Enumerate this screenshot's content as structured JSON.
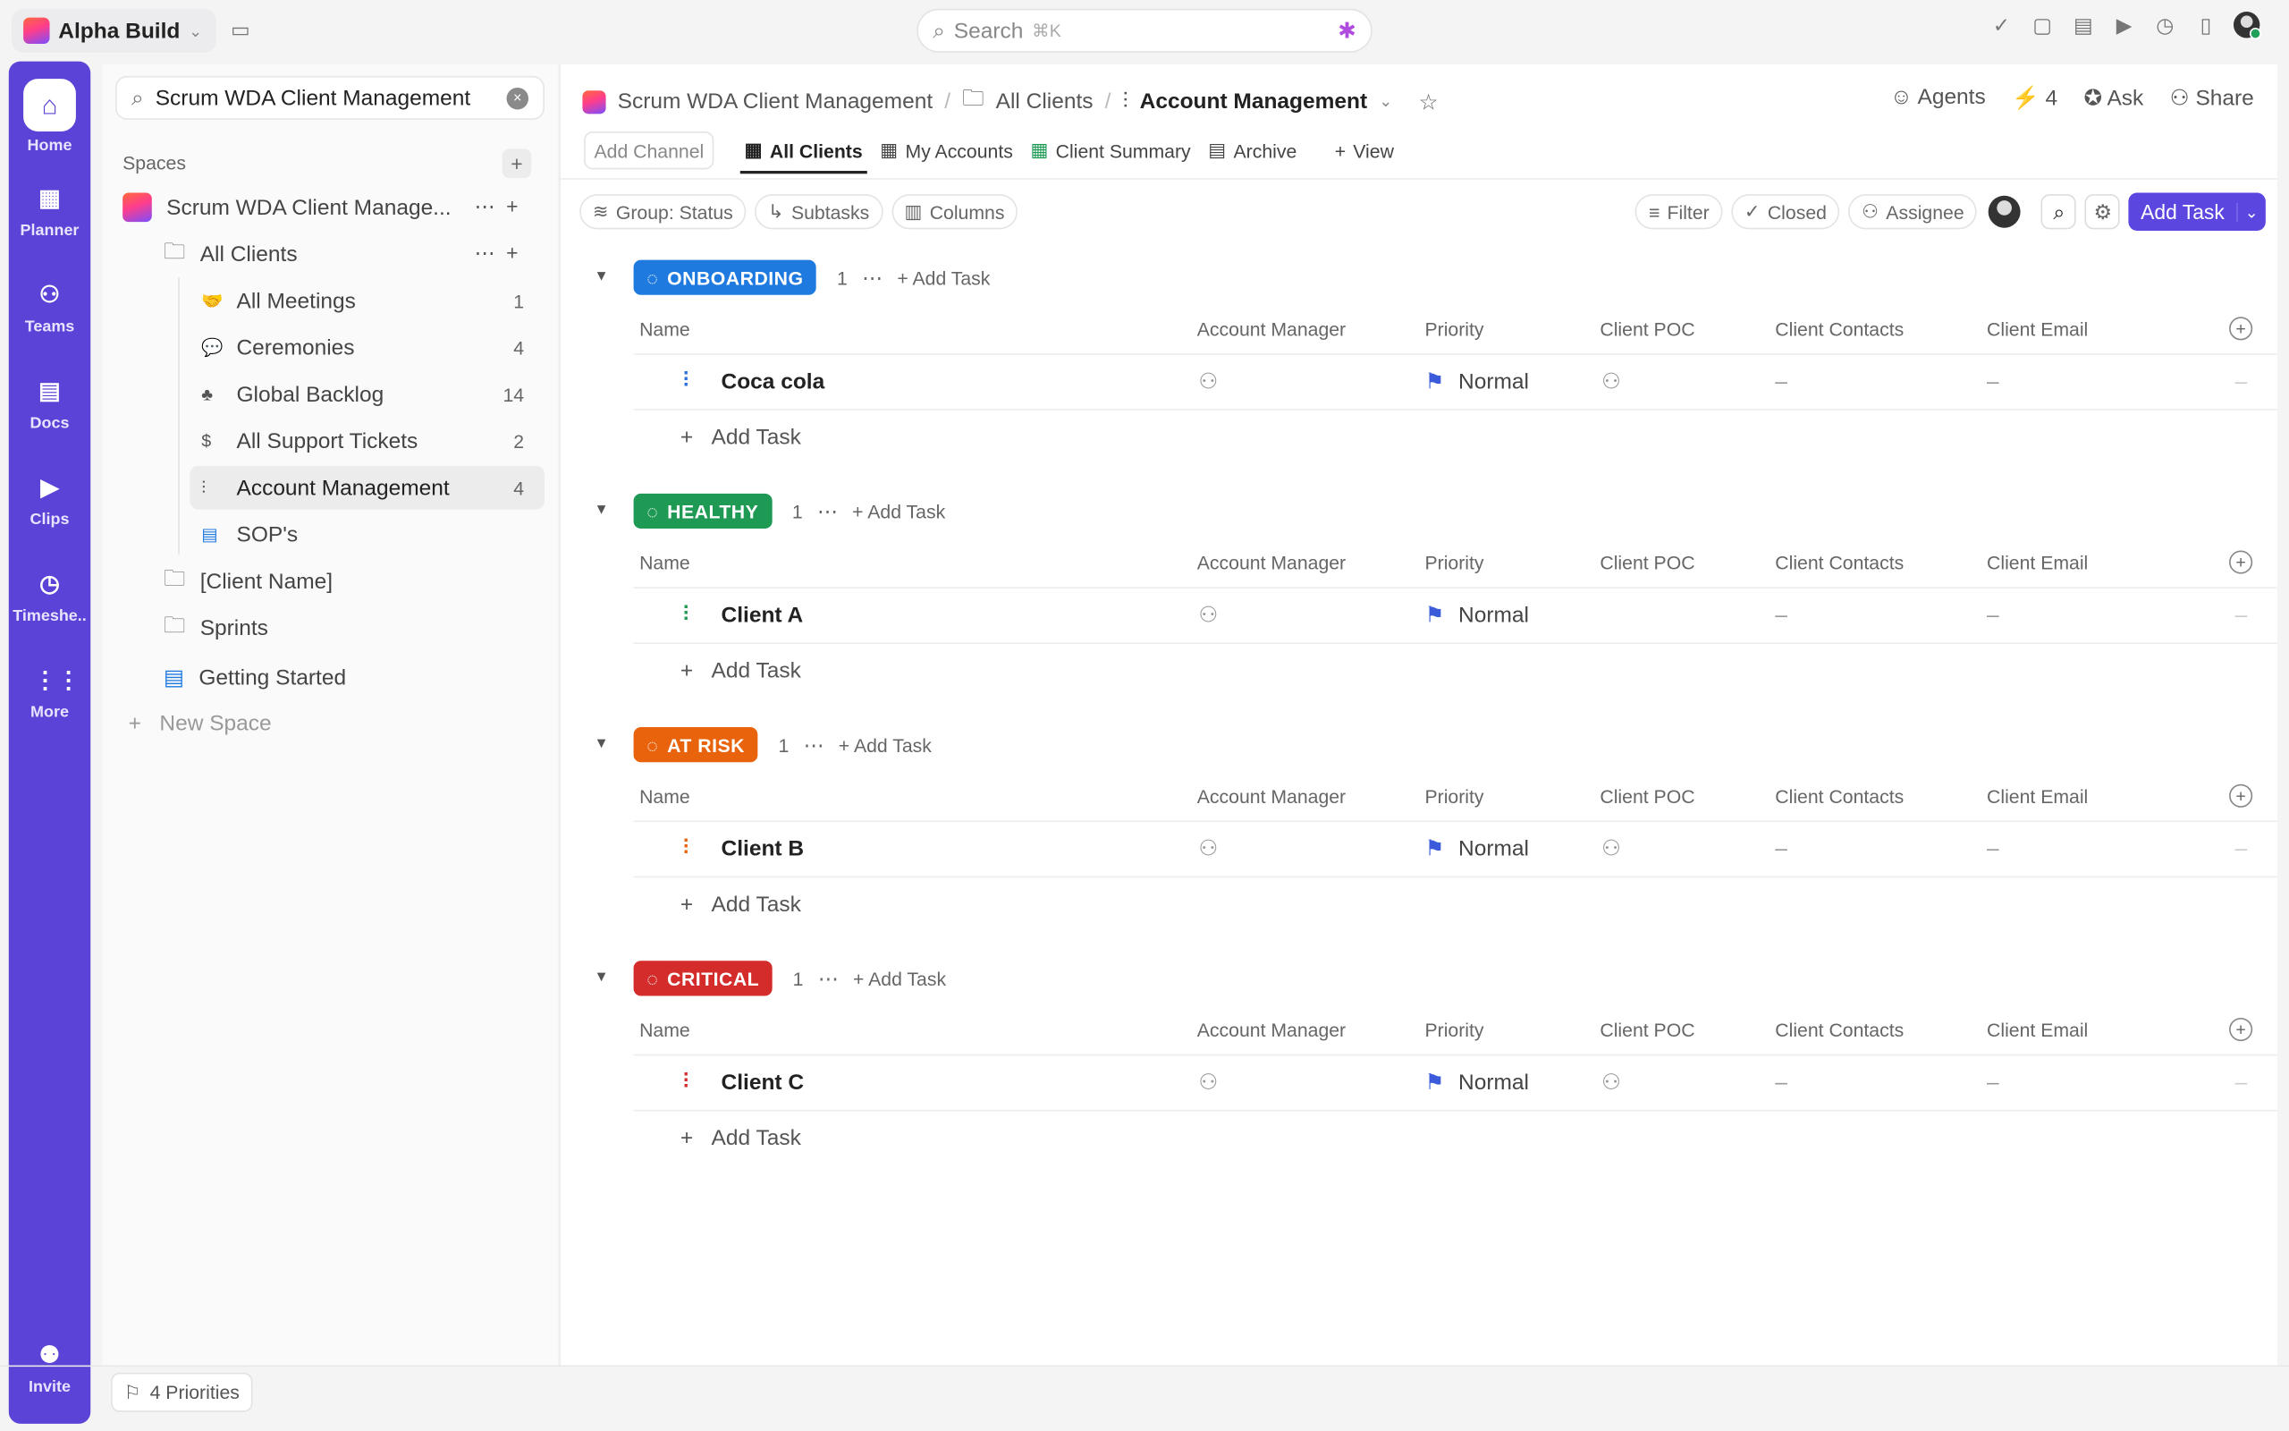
{
  "topbar": {
    "workspace": "Alpha Build",
    "search_placeholder": "Search",
    "search_shortcut": "⌘K"
  },
  "rail": [
    {
      "label": "Home",
      "icon": "home-icon"
    },
    {
      "label": "Planner",
      "icon": "calendar-icon"
    },
    {
      "label": "Teams",
      "icon": "teams-icon"
    },
    {
      "label": "Docs",
      "icon": "docs-icon"
    },
    {
      "label": "Clips",
      "icon": "video-icon"
    },
    {
      "label": "Timeshe..",
      "icon": "clock-icon"
    },
    {
      "label": "More",
      "icon": "grid-icon"
    },
    {
      "label": "Invite",
      "icon": "invite-icon"
    }
  ],
  "sidebar": {
    "search_value": "Scrum WDA Client Management",
    "spaces_label": "Spaces",
    "space_name": "Scrum WDA Client Manage...",
    "folder": "All Clients",
    "lists": [
      {
        "label": "All Meetings",
        "count": "1"
      },
      {
        "label": "Ceremonies",
        "count": "4"
      },
      {
        "label": "Global Backlog",
        "count": "14"
      },
      {
        "label": "All Support Tickets",
        "count": "2"
      },
      {
        "label": "Account Management",
        "count": "4"
      },
      {
        "label": "SOP's",
        "count": ""
      }
    ],
    "others": [
      "[Client Name]",
      "Sprints",
      "Getting Started"
    ],
    "new_space": "New Space"
  },
  "bottom": {
    "priorities": "4 Priorities"
  },
  "header": {
    "breadcrumb": [
      "Scrum WDA Client Management",
      "All Clients",
      "Account Management"
    ],
    "agents": "Agents",
    "bolt_count": "4",
    "ask": "Ask",
    "share": "Share"
  },
  "tabs": {
    "add_channel": "Add Channel",
    "items": [
      "All Clients",
      "My Accounts",
      "Client Summary",
      "Archive"
    ],
    "view": "View"
  },
  "toolbar": {
    "group": "Group: Status",
    "subtasks": "Subtasks",
    "columns": "Columns",
    "filter": "Filter",
    "closed": "Closed",
    "assignee": "Assignee",
    "add_task": "Add Task"
  },
  "columns": [
    "Name",
    "Account Manager",
    "Priority",
    "Client POC",
    "Client Contacts",
    "Client Email"
  ],
  "groups": [
    {
      "status": "ONBOARDING",
      "color": "#1f7ae0",
      "count": "1",
      "add_task": "Add Task",
      "task": {
        "name": "Coca cola",
        "priority": "Normal",
        "contacts": "–",
        "email": "–",
        "icon_color": "#2a6fdb"
      }
    },
    {
      "status": "HEALTHY",
      "color": "#1f9a55",
      "count": "1",
      "add_task": "Add Task",
      "task": {
        "name": "Client A",
        "priority": "Normal",
        "contacts": "–",
        "email": "–",
        "icon_color": "#1f9a55"
      }
    },
    {
      "status": "AT RISK",
      "color": "#e9630c",
      "count": "1",
      "add_task": "Add Task",
      "task": {
        "name": "Client B",
        "priority": "Normal",
        "contacts": "–",
        "email": "–",
        "icon_color": "#e9630c"
      }
    },
    {
      "status": "CRITICAL",
      "color": "#d42b2b",
      "count": "1",
      "add_task": "Add Task",
      "task": {
        "name": "Client C",
        "priority": "Normal",
        "contacts": "–",
        "email": "–",
        "icon_color": "#d42b2b"
      }
    }
  ]
}
